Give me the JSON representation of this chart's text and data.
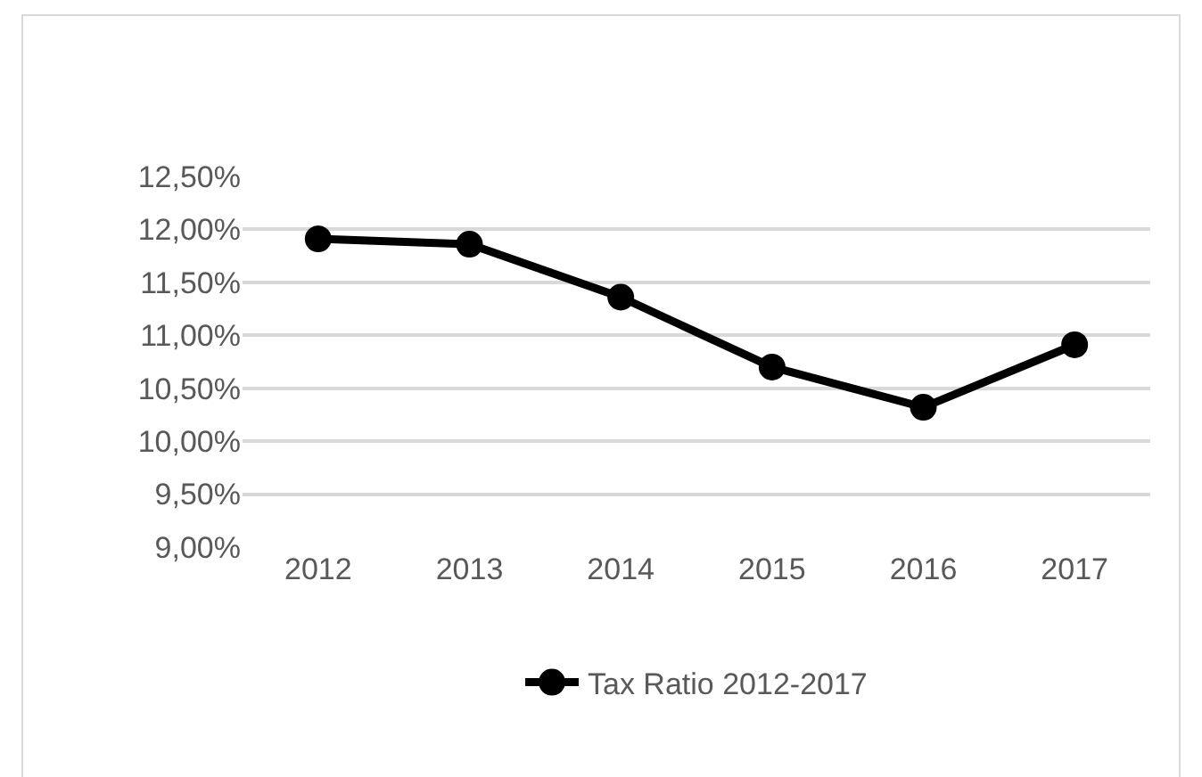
{
  "chart_data": {
    "type": "line",
    "categories": [
      "2012",
      "2013",
      "2014",
      "2015",
      "2016",
      "2017"
    ],
    "series": [
      {
        "name": "Tax Ratio 2012-2017",
        "color": "#000000",
        "values": [
          11.91,
          11.86,
          11.36,
          10.7,
          10.32,
          10.91
        ]
      }
    ],
    "ylim": [
      9,
      12.5
    ],
    "yticks": [
      {
        "value": 9,
        "label": "9,00%"
      },
      {
        "value": 9.5,
        "label": "9,50%"
      },
      {
        "value": 10,
        "label": "10,00%"
      },
      {
        "value": 10.5,
        "label": "10,50%"
      },
      {
        "value": 11,
        "label": "11,00%"
      },
      {
        "value": 11.5,
        "label": "11,50%"
      },
      {
        "value": 12,
        "label": "12,00%"
      },
      {
        "value": 12.5,
        "label": "12,50%"
      }
    ],
    "grid": "y",
    "legend": "bottom",
    "marker": "circle",
    "line_style": "solid"
  }
}
